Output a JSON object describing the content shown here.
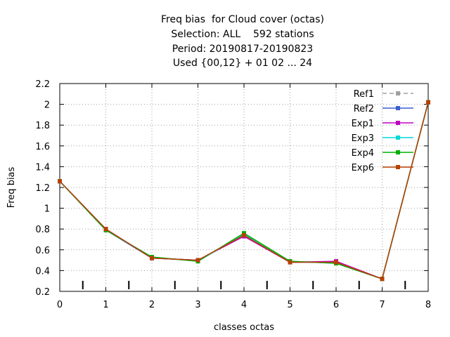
{
  "chart_data": {
    "type": "line",
    "title_lines": [
      "Freq bias  for Cloud cover (octas)",
      "Selection: ALL    592 stations",
      "Period: 20190817-20190823",
      "Used {00,12} + 01 02 ... 24"
    ],
    "xlabel": "classes octas",
    "ylabel": "Freq bias",
    "xlim": [
      0,
      8
    ],
    "ylim": [
      0.2,
      2.2
    ],
    "x_ticks": [
      "0",
      "1",
      "2",
      "3",
      "4",
      "5",
      "6",
      "7",
      "8"
    ],
    "y_ticks": [
      "0.2",
      "0.4",
      "0.6",
      "0.8",
      "1",
      "1.2",
      "1.4",
      "1.6",
      "1.8",
      "2",
      "2.2"
    ],
    "grid": true,
    "legend_position": "top-right",
    "minor_marks_x": [
      0.5,
      1.5,
      2.5,
      3.5,
      4.5,
      5.5,
      6.5,
      7.5
    ],
    "x": [
      0,
      1,
      2,
      3,
      4,
      5,
      6,
      7,
      8
    ],
    "series": [
      {
        "name": "Ref1",
        "color": "#a0a0a0",
        "dashed": true,
        "values": [
          1.26,
          0.79,
          0.52,
          0.5,
          0.74,
          0.48,
          0.48,
          0.32,
          2.02
        ]
      },
      {
        "name": "Ref2",
        "color": "#3a5fcd",
        "dashed": false,
        "values": [
          1.26,
          0.79,
          0.52,
          0.5,
          0.74,
          0.48,
          0.48,
          0.32,
          2.02
        ]
      },
      {
        "name": "Exp1",
        "color": "#c000c0",
        "dashed": false,
        "values": [
          1.26,
          0.8,
          0.52,
          0.5,
          0.73,
          0.48,
          0.49,
          0.32,
          2.02
        ]
      },
      {
        "name": "Exp3",
        "color": "#00d8d8",
        "dashed": false,
        "values": [
          1.26,
          0.79,
          0.53,
          0.49,
          0.75,
          0.49,
          0.47,
          0.32,
          2.02
        ]
      },
      {
        "name": "Exp4",
        "color": "#00b000",
        "dashed": false,
        "values": [
          1.26,
          0.79,
          0.53,
          0.49,
          0.76,
          0.49,
          0.47,
          0.32,
          2.02
        ]
      },
      {
        "name": "Exp6",
        "color": "#b84000",
        "dashed": false,
        "values": [
          1.26,
          0.8,
          0.52,
          0.5,
          0.74,
          0.48,
          0.48,
          0.32,
          2.02
        ]
      }
    ]
  }
}
